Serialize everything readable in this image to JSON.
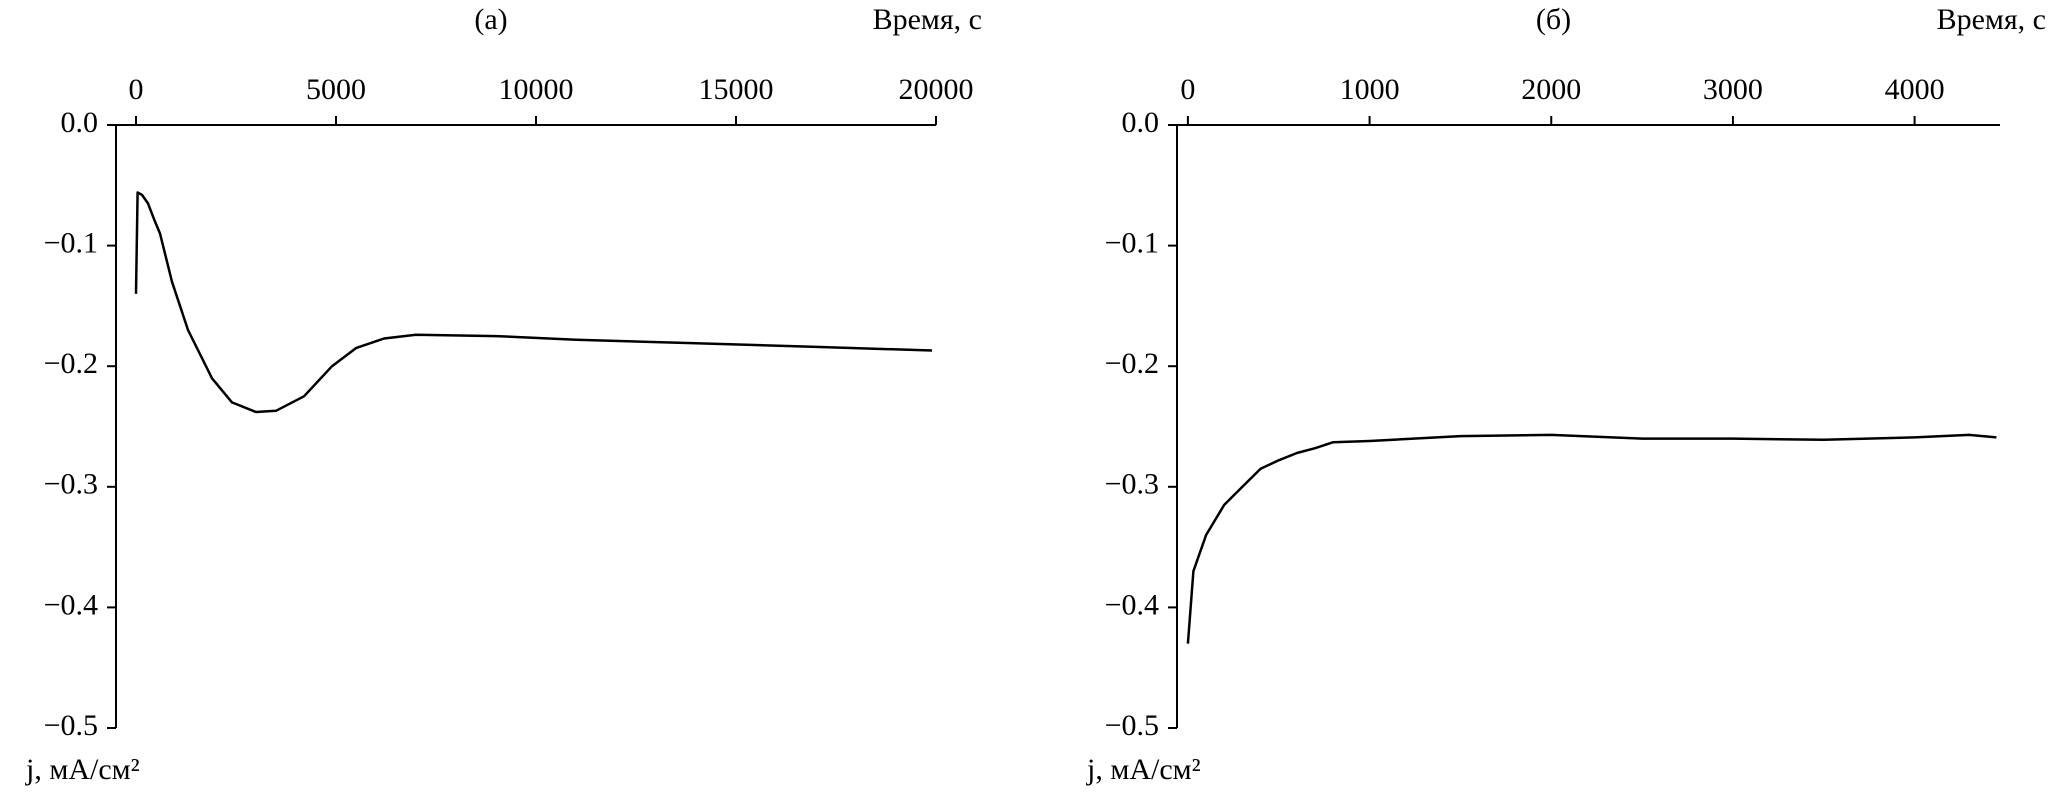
{
  "chart_data": [
    {
      "type": "line",
      "title": "(а)",
      "x_label": "Время, с",
      "y_label": "j, мА/см²",
      "x": [
        0,
        40,
        150,
        300,
        450,
        600,
        900,
        1300,
        1900,
        2400,
        3000,
        3500,
        4200,
        4900,
        5500,
        6200,
        7000,
        9000,
        11000,
        14000,
        17000,
        19900
      ],
      "values": [
        -0.14,
        -0.056,
        -0.058,
        -0.065,
        -0.078,
        -0.09,
        -0.13,
        -0.17,
        -0.21,
        -0.23,
        -0.238,
        -0.237,
        -0.225,
        -0.2,
        -0.185,
        -0.177,
        -0.174,
        -0.175,
        -0.178,
        -0.181,
        -0.184,
        -0.187
      ],
      "color": "#000000",
      "xlim": [
        -500,
        20000
      ],
      "xticks": [
        0,
        5000,
        10000,
        15000,
        20000
      ],
      "ylim": [
        -0.5,
        0
      ],
      "yticks": [
        {
          "value": 0,
          "label": "0.0"
        },
        {
          "value": -0.1,
          "label": "−0.1"
        },
        {
          "value": -0.2,
          "label": "−0.2"
        },
        {
          "value": -0.3,
          "label": "−0.3"
        },
        {
          "value": -0.4,
          "label": "−0.4"
        },
        {
          "value": -0.5,
          "label": "−0.5"
        }
      ]
    },
    {
      "type": "line",
      "title": "(б)",
      "x_label": "Время, с",
      "y_label": "j, мА/см²",
      "x": [
        0,
        30,
        100,
        200,
        300,
        400,
        500,
        600,
        700,
        800,
        1000,
        1500,
        2000,
        2500,
        3000,
        3500,
        4000,
        4300,
        4450
      ],
      "values": [
        -0.43,
        -0.37,
        -0.34,
        -0.315,
        -0.3,
        -0.285,
        -0.278,
        -0.272,
        -0.268,
        -0.263,
        -0.262,
        -0.258,
        -0.257,
        -0.26,
        -0.26,
        -0.261,
        -0.259,
        -0.257,
        -0.259
      ],
      "color": "#000000",
      "xlim": [
        -60,
        4470
      ],
      "xticks": [
        0,
        1000,
        2000,
        3000,
        4000
      ],
      "ylim": [
        -0.5,
        0
      ],
      "yticks": [
        {
          "value": 0,
          "label": "0.0"
        },
        {
          "value": -0.1,
          "label": "−0.1"
        },
        {
          "value": -0.2,
          "label": "−0.2"
        },
        {
          "value": -0.3,
          "label": "−0.3"
        },
        {
          "value": -0.4,
          "label": "−0.4"
        },
        {
          "value": -0.5,
          "label": "−0.5"
        }
      ]
    }
  ]
}
